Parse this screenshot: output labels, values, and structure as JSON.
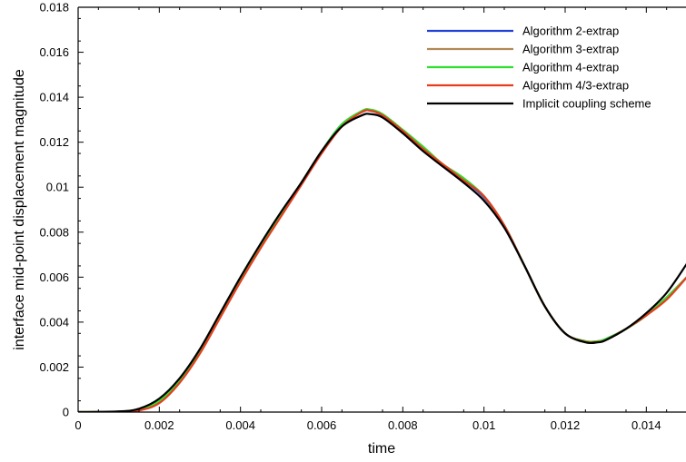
{
  "chart_data": {
    "type": "line",
    "title": "",
    "xlabel": "time",
    "ylabel": "interface mid-point displacement magnitude",
    "xlim": [
      0,
      0.015
    ],
    "ylim": [
      0,
      0.018
    ],
    "x_ticks": [
      0,
      0.002,
      0.004,
      0.006,
      0.008,
      0.01,
      0.012,
      0.014
    ],
    "x_tick_labels": [
      "0",
      "0.002",
      "0.004",
      "0.006",
      "0.008",
      "0.01",
      "0.012",
      "0.014"
    ],
    "y_ticks": [
      0,
      0.002,
      0.004,
      0.006,
      0.008,
      0.01,
      0.012,
      0.014,
      0.016,
      0.018
    ],
    "y_tick_labels": [
      "0",
      "0.002",
      "0.004",
      "0.006",
      "0.008",
      "0.01",
      "0.012",
      "0.014",
      "0.016",
      "0.018"
    ],
    "grid": false,
    "legend_position": "top-right",
    "series": [
      {
        "name": "Algorithm 2-extrap",
        "color": "#1f3fd8",
        "x": [
          0,
          0.001,
          0.0015,
          0.002,
          0.0025,
          0.003,
          0.0035,
          0.004,
          0.0045,
          0.005,
          0.0055,
          0.006,
          0.0065,
          0.007,
          0.0072,
          0.0075,
          0.008,
          0.0085,
          0.009,
          0.0095,
          0.01,
          0.0105,
          0.011,
          0.0115,
          0.012,
          0.0125,
          0.0128,
          0.013,
          0.0135,
          0.014,
          0.0145,
          0.015
        ],
        "y": [
          0,
          2e-05,
          0.0001,
          0.0005,
          0.0014,
          0.0027,
          0.0043,
          0.0059,
          0.0074,
          0.0088,
          0.0102,
          0.0116,
          0.0128,
          0.01335,
          0.0134,
          0.0132,
          0.0125,
          0.0117,
          0.0109,
          0.0103,
          0.00955,
          0.0083,
          0.0065,
          0.0047,
          0.0035,
          0.00315,
          0.00315,
          0.00325,
          0.0037,
          0.0043,
          0.0051,
          0.006
        ]
      },
      {
        "name": "Algorithm 3-extrap",
        "color": "#b08a58",
        "x": [
          0,
          0.001,
          0.0015,
          0.002,
          0.0025,
          0.003,
          0.0035,
          0.004,
          0.0045,
          0.005,
          0.0055,
          0.006,
          0.0065,
          0.007,
          0.0072,
          0.0075,
          0.008,
          0.0085,
          0.009,
          0.0095,
          0.01,
          0.0105,
          0.011,
          0.0115,
          0.012,
          0.0125,
          0.0128,
          0.013,
          0.0135,
          0.014,
          0.0145,
          0.015
        ],
        "y": [
          0,
          2e-05,
          0.0001,
          0.0005,
          0.0014,
          0.0027,
          0.0043,
          0.0059,
          0.0074,
          0.0088,
          0.0102,
          0.0116,
          0.0128,
          0.01338,
          0.01342,
          0.0132,
          0.0125,
          0.0117,
          0.011,
          0.0104,
          0.0096,
          0.0083,
          0.0065,
          0.0047,
          0.0035,
          0.00315,
          0.00315,
          0.00325,
          0.0037,
          0.0043,
          0.0051,
          0.006
        ]
      },
      {
        "name": "Algorithm 4-extrap",
        "color": "#2ee02e",
        "x": [
          0,
          0.001,
          0.0015,
          0.002,
          0.0025,
          0.003,
          0.0035,
          0.004,
          0.0045,
          0.005,
          0.0055,
          0.006,
          0.0065,
          0.007,
          0.0072,
          0.0075,
          0.008,
          0.0085,
          0.009,
          0.0095,
          0.01,
          0.0105,
          0.011,
          0.0115,
          0.012,
          0.0125,
          0.0128,
          0.013,
          0.0135,
          0.014,
          0.0145,
          0.015
        ],
        "y": [
          0,
          2e-05,
          0.0001,
          0.0005,
          0.0014,
          0.0027,
          0.0043,
          0.0059,
          0.0074,
          0.0088,
          0.0102,
          0.0116,
          0.0128,
          0.0134,
          0.01345,
          0.01325,
          0.01255,
          0.0118,
          0.011,
          0.0104,
          0.0096,
          0.0083,
          0.0065,
          0.0047,
          0.0035,
          0.00315,
          0.00315,
          0.00325,
          0.0037,
          0.0043,
          0.0051,
          0.006
        ]
      },
      {
        "name": "Algorithm 4/3-extrap",
        "color": "#e63c1e",
        "x": [
          0,
          0.001,
          0.0015,
          0.002,
          0.0025,
          0.003,
          0.0035,
          0.004,
          0.0045,
          0.005,
          0.0055,
          0.006,
          0.0065,
          0.007,
          0.0072,
          0.0075,
          0.008,
          0.0085,
          0.009,
          0.0095,
          0.01,
          0.0105,
          0.011,
          0.0115,
          0.012,
          0.0125,
          0.0128,
          0.013,
          0.0135,
          0.014,
          0.0145,
          0.015
        ],
        "y": [
          0,
          1e-05,
          7e-05,
          0.0004,
          0.0013,
          0.0026,
          0.0042,
          0.0058,
          0.0073,
          0.0087,
          0.0101,
          0.0115,
          0.0127,
          0.01335,
          0.0134,
          0.0132,
          0.0125,
          0.0117,
          0.011,
          0.0103,
          0.0096,
          0.0083,
          0.0065,
          0.0047,
          0.0035,
          0.00312,
          0.00312,
          0.0032,
          0.0037,
          0.0043,
          0.005,
          0.006
        ]
      },
      {
        "name": "Implicit coupling scheme",
        "color": "#000000",
        "x": [
          0,
          0.001,
          0.0015,
          0.002,
          0.0025,
          0.003,
          0.0035,
          0.004,
          0.0045,
          0.005,
          0.0055,
          0.006,
          0.0065,
          0.007,
          0.0072,
          0.0075,
          0.008,
          0.0085,
          0.009,
          0.0095,
          0.01,
          0.0105,
          0.011,
          0.0115,
          0.012,
          0.0125,
          0.0128,
          0.013,
          0.0135,
          0.014,
          0.0145,
          0.015
        ],
        "y": [
          0,
          3e-05,
          0.00015,
          0.0006,
          0.0015,
          0.0028,
          0.0044,
          0.006,
          0.0075,
          0.0089,
          0.0102,
          0.0116,
          0.0127,
          0.0132,
          0.01325,
          0.0131,
          0.0124,
          0.0116,
          0.0109,
          0.0102,
          0.0094,
          0.0082,
          0.0065,
          0.0047,
          0.0035,
          0.0031,
          0.0031,
          0.0032,
          0.0037,
          0.0044,
          0.0053,
          0.0066
        ]
      }
    ]
  }
}
